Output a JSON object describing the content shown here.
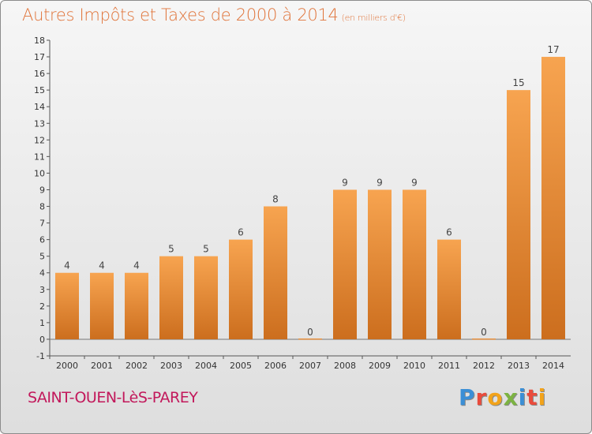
{
  "header": {
    "title": "Autres Impôts et Taxes de 2000 à 2014",
    "subtitle": "(en milliers d'€)"
  },
  "footer": {
    "commune": "SAINT-OUEN-LèS-PAREY",
    "logo_letters": [
      "P",
      "r",
      "o",
      "x",
      "i",
      "t",
      "i"
    ],
    "logo_colors": [
      "#3b8fd6",
      "#e94b3c",
      "#f2a31a",
      "#7cb342",
      "#3b8fd6",
      "#e94b3c",
      "#f2a31a"
    ]
  },
  "chart_data": {
    "type": "bar",
    "categories": [
      "2000",
      "2001",
      "2002",
      "2003",
      "2004",
      "2005",
      "2006",
      "2007",
      "2008",
      "2009",
      "2010",
      "2011",
      "2012",
      "2013",
      "2014"
    ],
    "values": [
      4,
      4,
      4,
      5,
      5,
      6,
      8,
      0,
      9,
      9,
      9,
      6,
      0,
      15,
      17
    ],
    "ylim": [
      -1,
      18
    ],
    "yticks": [
      -1,
      0,
      1,
      2,
      3,
      4,
      5,
      6,
      7,
      8,
      9,
      10,
      11,
      12,
      13,
      14,
      15,
      16,
      17,
      18
    ],
    "grid": false,
    "bar_color_top": "#f7a450",
    "bar_color_bottom": "#cc6e1e",
    "xlabel": "",
    "ylabel": ""
  }
}
